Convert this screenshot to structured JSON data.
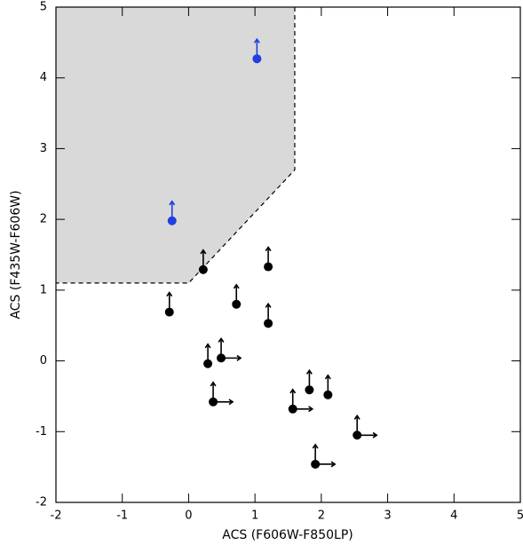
{
  "chart_data": {
    "type": "scatter",
    "x_label": "ACS (F606W-F850LP)",
    "y_label": "ACS (F435W-F606W)",
    "xlim": [
      -2,
      5
    ],
    "ylim": [
      -2,
      5
    ],
    "xticks": [
      -2,
      -1,
      0,
      1,
      2,
      3,
      4,
      5
    ],
    "yticks": [
      -2,
      -1,
      0,
      1,
      2,
      3,
      4,
      5
    ],
    "region": {
      "color": "#d9d9d9",
      "x": [
        -2,
        1.6,
        1.6,
        0,
        -2
      ],
      "y": [
        5,
        5,
        2.7,
        1.1,
        1.1
      ]
    },
    "series": [
      {
        "color": "#1f3fe0",
        "x": [
          1.03,
          -0.25
        ],
        "y": [
          4.27,
          1.98
        ],
        "arrow_up": [
          true,
          true
        ],
        "arrow_right": [
          false,
          false
        ]
      },
      {
        "color": "#000000",
        "x": [
          0.22,
          1.2,
          -0.29,
          0.72,
          1.2,
          0.29,
          0.49,
          0.37,
          1.82,
          2.1,
          1.57,
          2.54,
          1.91
        ],
        "y": [
          1.29,
          1.33,
          0.69,
          0.8,
          0.53,
          -0.04,
          0.04,
          -0.58,
          -0.41,
          -0.48,
          -0.68,
          -1.05,
          -1.46
        ],
        "arrow_up": [
          true,
          true,
          true,
          true,
          true,
          true,
          true,
          true,
          true,
          true,
          true,
          true,
          true
        ],
        "arrow_right": [
          false,
          false,
          false,
          false,
          false,
          false,
          true,
          true,
          false,
          false,
          true,
          true,
          true
        ]
      }
    ]
  }
}
